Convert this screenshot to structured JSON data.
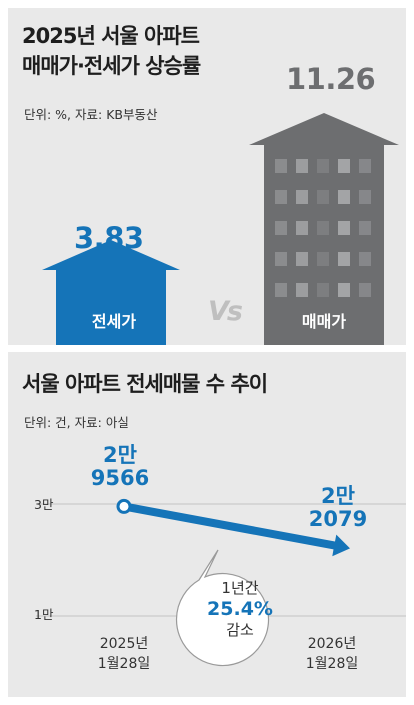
{
  "chart_data": [
    {
      "type": "bar",
      "title": "2025년 서울 아파트\n매매가·전세가 상승률",
      "unit_note": "단위: %, 자료: KB부동산",
      "categories": [
        "전세가",
        "매매가"
      ],
      "values": [
        3.83,
        11.26
      ],
      "value_labels": [
        "3.83",
        "11.26"
      ],
      "separator": "Vs",
      "colors": {
        "jeonse": "#1574b8",
        "maemae": "#6d6e70"
      }
    },
    {
      "type": "line",
      "title": "서울 아파트 전세매물 수 추이",
      "unit_note": "단위: 건, 자료: 아실",
      "x": [
        "2025년 1월28일",
        "2026년 1월28일"
      ],
      "x_tick_labels": [
        [
          "2025년",
          "1월28일"
        ],
        [
          "2026년",
          "1월28일"
        ]
      ],
      "y_tick_labels": [
        "3만",
        "1만"
      ],
      "y_ticks": [
        30000,
        10000
      ],
      "series": [
        {
          "values": [
            29566,
            22079
          ]
        }
      ],
      "point_labels": [
        [
          "2만",
          "9566"
        ],
        [
          "2만",
          "2079"
        ]
      ],
      "annotation": {
        "line1": "1년간",
        "line2": "25.4%",
        "line3": "감소"
      },
      "color": "#1574b8"
    }
  ]
}
